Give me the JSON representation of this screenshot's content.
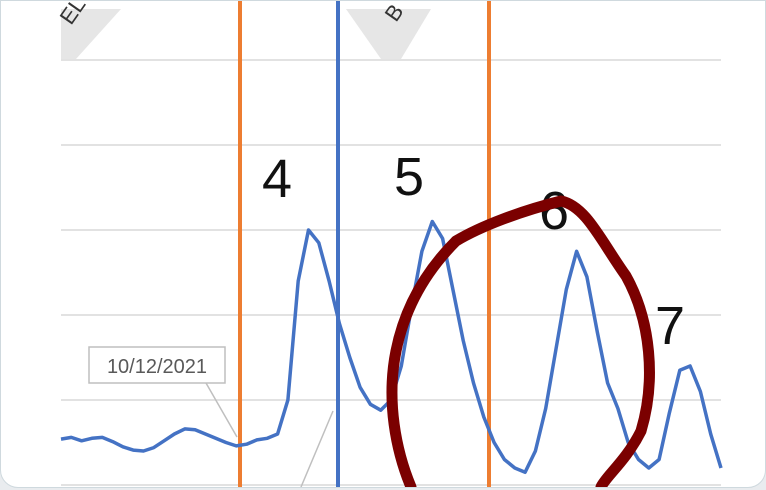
{
  "chart_data": {
    "type": "line",
    "title": "",
    "xlabel": "",
    "ylabel": "",
    "grid": true,
    "colors": {
      "series": "#4472c4",
      "marker_orange": "#ed7d31",
      "marker_blue": "#4472c4",
      "annotation": "#7b0000"
    },
    "peak_labels": [
      "4",
      "5",
      "6",
      "7"
    ],
    "date_callout": "10/12/2021",
    "rotated_labels": [
      "EL",
      "B"
    ],
    "series": [
      {
        "values": [
          0.54,
          0.56,
          0.52,
          0.55,
          0.56,
          0.51,
          0.45,
          0.41,
          0.4,
          0.44,
          0.52,
          0.6,
          0.66,
          0.65,
          0.6,
          0.55,
          0.5,
          0.46,
          0.48,
          0.53,
          0.55,
          0.6,
          1.0,
          2.4,
          3.0,
          2.85,
          2.4,
          1.9,
          1.5,
          1.15,
          0.95,
          0.88,
          1.0,
          1.4,
          2.1,
          2.75,
          3.1,
          2.9,
          2.3,
          1.7,
          1.2,
          0.8,
          0.5,
          0.3,
          0.2,
          0.15,
          0.4,
          0.9,
          1.6,
          2.3,
          2.75,
          2.45,
          1.8,
          1.2,
          0.9,
          0.5,
          0.3,
          0.2,
          0.3,
          0.85,
          1.35,
          1.4,
          1.1,
          0.6,
          0.2
        ]
      }
    ]
  }
}
